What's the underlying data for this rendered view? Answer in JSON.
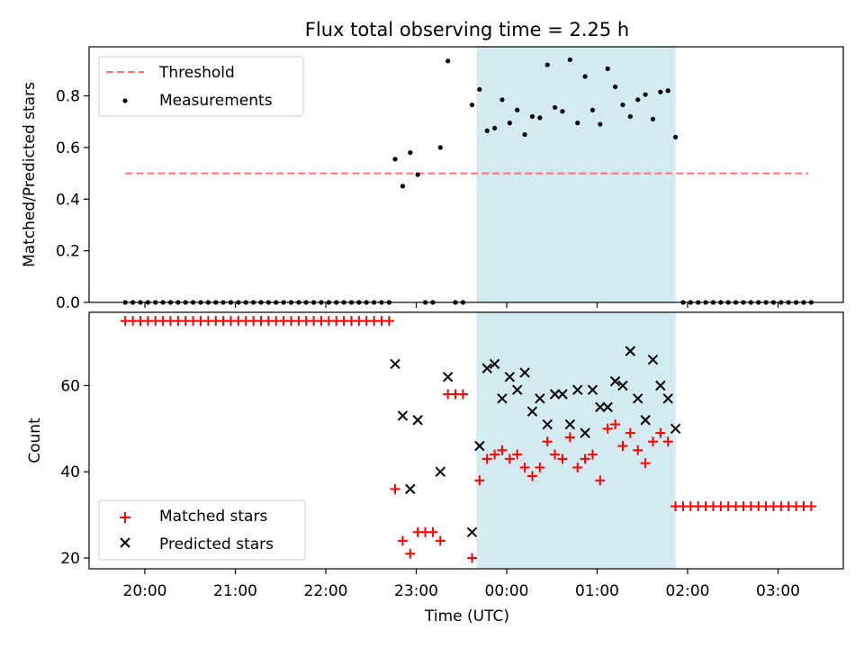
{
  "chart_data": {
    "title": "Flux total observing time = 2.25 h",
    "xlabel": "Time (UTC)",
    "x_tick_labels": [
      "20:00",
      "21:00",
      "22:00",
      "23:00",
      "00:00",
      "01:00",
      "02:00",
      "03:00"
    ],
    "highlight_span": {
      "start": "23:40",
      "end": "01:52",
      "color": "#d3eaf0"
    },
    "panels": [
      {
        "type": "scatter",
        "ylabel": "Matched/Predicted stars",
        "ylim": [
          0,
          0.99
        ],
        "y_ticks": [
          0.0,
          0.2,
          0.4,
          0.6,
          0.8
        ],
        "y_tick_labels": [
          "0.0",
          "0.2",
          "0.4",
          "0.6",
          "0.8"
        ],
        "legend_position": "upper left",
        "threshold": {
          "name": "Threshold",
          "value": 0.5,
          "x_start": "19:47",
          "x_end": "03:20",
          "color": "#ff7070",
          "style": "dashed"
        },
        "series": [
          {
            "name": "Measurements",
            "marker": "dot",
            "color": "#000000",
            "points": [
              [
                "19:47",
                0
              ],
              [
                "19:52",
                0
              ],
              [
                "19:57",
                0
              ],
              [
                "20:02",
                0
              ],
              [
                "20:07",
                0
              ],
              [
                "20:12",
                0
              ],
              [
                "20:17",
                0
              ],
              [
                "20:22",
                0
              ],
              [
                "20:27",
                0
              ],
              [
                "20:32",
                0
              ],
              [
                "20:37",
                0
              ],
              [
                "20:42",
                0
              ],
              [
                "20:47",
                0
              ],
              [
                "20:52",
                0
              ],
              [
                "20:57",
                0
              ],
              [
                "21:02",
                0
              ],
              [
                "21:07",
                0
              ],
              [
                "21:12",
                0
              ],
              [
                "21:17",
                0
              ],
              [
                "21:22",
                0
              ],
              [
                "21:27",
                0
              ],
              [
                "21:32",
                0
              ],
              [
                "21:37",
                0
              ],
              [
                "21:42",
                0
              ],
              [
                "21:47",
                0
              ],
              [
                "21:52",
                0
              ],
              [
                "21:57",
                0
              ],
              [
                "22:02",
                0
              ],
              [
                "22:07",
                0
              ],
              [
                "22:12",
                0
              ],
              [
                "22:17",
                0
              ],
              [
                "22:22",
                0
              ],
              [
                "22:27",
                0
              ],
              [
                "22:32",
                0
              ],
              [
                "22:37",
                0
              ],
              [
                "22:42",
                0
              ],
              [
                "22:46",
                0.555
              ],
              [
                "22:51",
                0.45
              ],
              [
                "22:56",
                0.58
              ],
              [
                "23:01",
                0.495
              ],
              [
                "23:06",
                0
              ],
              [
                "23:11",
                0
              ],
              [
                "23:16",
                0.6
              ],
              [
                "23:21",
                0.935
              ],
              [
                "23:26",
                0
              ],
              [
                "23:31",
                0
              ],
              [
                "23:37",
                0.765
              ],
              [
                "23:42",
                0.825
              ],
              [
                "23:47",
                0.665
              ],
              [
                "23:52",
                0.675
              ],
              [
                "23:57",
                0.785
              ],
              [
                "00:02",
                0.695
              ],
              [
                "00:07",
                0.745
              ],
              [
                "00:12",
                0.65
              ],
              [
                "00:17",
                0.72
              ],
              [
                "00:22",
                0.715
              ],
              [
                "00:27",
                0.92
              ],
              [
                "00:32",
                0.755
              ],
              [
                "00:37",
                0.74
              ],
              [
                "00:42",
                0.94
              ],
              [
                "00:47",
                0.695
              ],
              [
                "00:52",
                0.875
              ],
              [
                "00:57",
                0.745
              ],
              [
                "01:02",
                0.69
              ],
              [
                "01:07",
                0.905
              ],
              [
                "01:12",
                0.835
              ],
              [
                "01:17",
                0.765
              ],
              [
                "01:22",
                0.72
              ],
              [
                "01:27",
                0.785
              ],
              [
                "01:32",
                0.805
              ],
              [
                "01:37",
                0.71
              ],
              [
                "01:42",
                0.815
              ],
              [
                "01:47",
                0.82
              ],
              [
                "01:52",
                0.64
              ],
              [
                "01:57",
                0
              ],
              [
                "02:02",
                0
              ],
              [
                "02:07",
                0
              ],
              [
                "02:12",
                0
              ],
              [
                "02:17",
                0
              ],
              [
                "02:22",
                0
              ],
              [
                "02:27",
                0
              ],
              [
                "02:32",
                0
              ],
              [
                "02:37",
                0
              ],
              [
                "02:42",
                0
              ],
              [
                "02:47",
                0
              ],
              [
                "02:52",
                0
              ],
              [
                "02:57",
                0
              ],
              [
                "03:02",
                0
              ],
              [
                "03:07",
                0
              ],
              [
                "03:12",
                0
              ],
              [
                "03:17",
                0
              ],
              [
                "03:22",
                0
              ]
            ]
          }
        ]
      },
      {
        "type": "scatter",
        "ylabel": "Count",
        "ylim": [
          17.5,
          77
        ],
        "y_ticks": [
          20,
          40,
          60
        ],
        "y_tick_labels": [
          "20",
          "40",
          "60"
        ],
        "legend_position": "lower left",
        "series": [
          {
            "name": "Matched stars",
            "marker": "plus",
            "color": "#ff0000",
            "points": [
              [
                "19:47",
                75
              ],
              [
                "19:52",
                75
              ],
              [
                "19:57",
                75
              ],
              [
                "20:02",
                75
              ],
              [
                "20:07",
                75
              ],
              [
                "20:12",
                75
              ],
              [
                "20:17",
                75
              ],
              [
                "20:22",
                75
              ],
              [
                "20:27",
                75
              ],
              [
                "20:32",
                75
              ],
              [
                "20:37",
                75
              ],
              [
                "20:42",
                75
              ],
              [
                "20:47",
                75
              ],
              [
                "20:52",
                75
              ],
              [
                "20:57",
                75
              ],
              [
                "21:02",
                75
              ],
              [
                "21:07",
                75
              ],
              [
                "21:12",
                75
              ],
              [
                "21:17",
                75
              ],
              [
                "21:22",
                75
              ],
              [
                "21:27",
                75
              ],
              [
                "21:32",
                75
              ],
              [
                "21:37",
                75
              ],
              [
                "21:42",
                75
              ],
              [
                "21:47",
                75
              ],
              [
                "21:52",
                75
              ],
              [
                "21:57",
                75
              ],
              [
                "22:02",
                75
              ],
              [
                "22:07",
                75
              ],
              [
                "22:12",
                75
              ],
              [
                "22:17",
                75
              ],
              [
                "22:22",
                75
              ],
              [
                "22:27",
                75
              ],
              [
                "22:32",
                75
              ],
              [
                "22:37",
                75
              ],
              [
                "22:42",
                75
              ],
              [
                "22:46",
                36
              ],
              [
                "22:51",
                24
              ],
              [
                "22:56",
                21
              ],
              [
                "23:01",
                26
              ],
              [
                "23:06",
                26
              ],
              [
                "23:11",
                26
              ],
              [
                "23:16",
                24
              ],
              [
                "23:21",
                58
              ],
              [
                "23:26",
                58
              ],
              [
                "23:31",
                58
              ],
              [
                "23:37",
                20
              ],
              [
                "23:42",
                38
              ],
              [
                "23:47",
                43
              ],
              [
                "23:52",
                44
              ],
              [
                "23:57",
                45
              ],
              [
                "00:02",
                43
              ],
              [
                "00:07",
                44
              ],
              [
                "00:12",
                41
              ],
              [
                "00:17",
                39
              ],
              [
                "00:22",
                41
              ],
              [
                "00:27",
                47
              ],
              [
                "00:32",
                44
              ],
              [
                "00:37",
                43
              ],
              [
                "00:42",
                48
              ],
              [
                "00:47",
                41
              ],
              [
                "00:52",
                43
              ],
              [
                "00:57",
                44
              ],
              [
                "01:02",
                38
              ],
              [
                "01:07",
                50
              ],
              [
                "01:12",
                51
              ],
              [
                "01:17",
                46
              ],
              [
                "01:22",
                49
              ],
              [
                "01:27",
                45
              ],
              [
                "01:32",
                42
              ],
              [
                "01:37",
                47
              ],
              [
                "01:42",
                49
              ],
              [
                "01:47",
                47
              ],
              [
                "01:52",
                32
              ],
              [
                "01:57",
                32
              ],
              [
                "02:02",
                32
              ],
              [
                "02:07",
                32
              ],
              [
                "02:12",
                32
              ],
              [
                "02:17",
                32
              ],
              [
                "02:22",
                32
              ],
              [
                "02:27",
                32
              ],
              [
                "02:32",
                32
              ],
              [
                "02:37",
                32
              ],
              [
                "02:42",
                32
              ],
              [
                "02:47",
                32
              ],
              [
                "02:52",
                32
              ],
              [
                "02:57",
                32
              ],
              [
                "03:02",
                32
              ],
              [
                "03:07",
                32
              ],
              [
                "03:12",
                32
              ],
              [
                "03:17",
                32
              ],
              [
                "03:22",
                32
              ]
            ]
          },
          {
            "name": "Predicted stars",
            "marker": "x",
            "color": "#000000",
            "points": [
              [
                "22:46",
                65
              ],
              [
                "22:51",
                53
              ],
              [
                "22:56",
                36
              ],
              [
                "23:01",
                52
              ],
              [
                "23:16",
                40
              ],
              [
                "23:21",
                62
              ],
              [
                "23:37",
                26
              ],
              [
                "23:42",
                46
              ],
              [
                "23:47",
                64
              ],
              [
                "23:52",
                65
              ],
              [
                "23:57",
                57
              ],
              [
                "00:02",
                62
              ],
              [
                "00:07",
                59
              ],
              [
                "00:12",
                63
              ],
              [
                "00:17",
                54
              ],
              [
                "00:22",
                57
              ],
              [
                "00:27",
                51
              ],
              [
                "00:32",
                58
              ],
              [
                "00:37",
                58
              ],
              [
                "00:42",
                51
              ],
              [
                "00:47",
                59
              ],
              [
                "00:52",
                49
              ],
              [
                "00:57",
                59
              ],
              [
                "01:02",
                55
              ],
              [
                "01:07",
                55
              ],
              [
                "01:12",
                61
              ],
              [
                "01:17",
                60
              ],
              [
                "01:22",
                68
              ],
              [
                "01:27",
                57
              ],
              [
                "01:32",
                52
              ],
              [
                "01:37",
                66
              ],
              [
                "01:42",
                60
              ],
              [
                "01:47",
                57
              ],
              [
                "01:52",
                50
              ]
            ]
          }
        ]
      }
    ]
  }
}
